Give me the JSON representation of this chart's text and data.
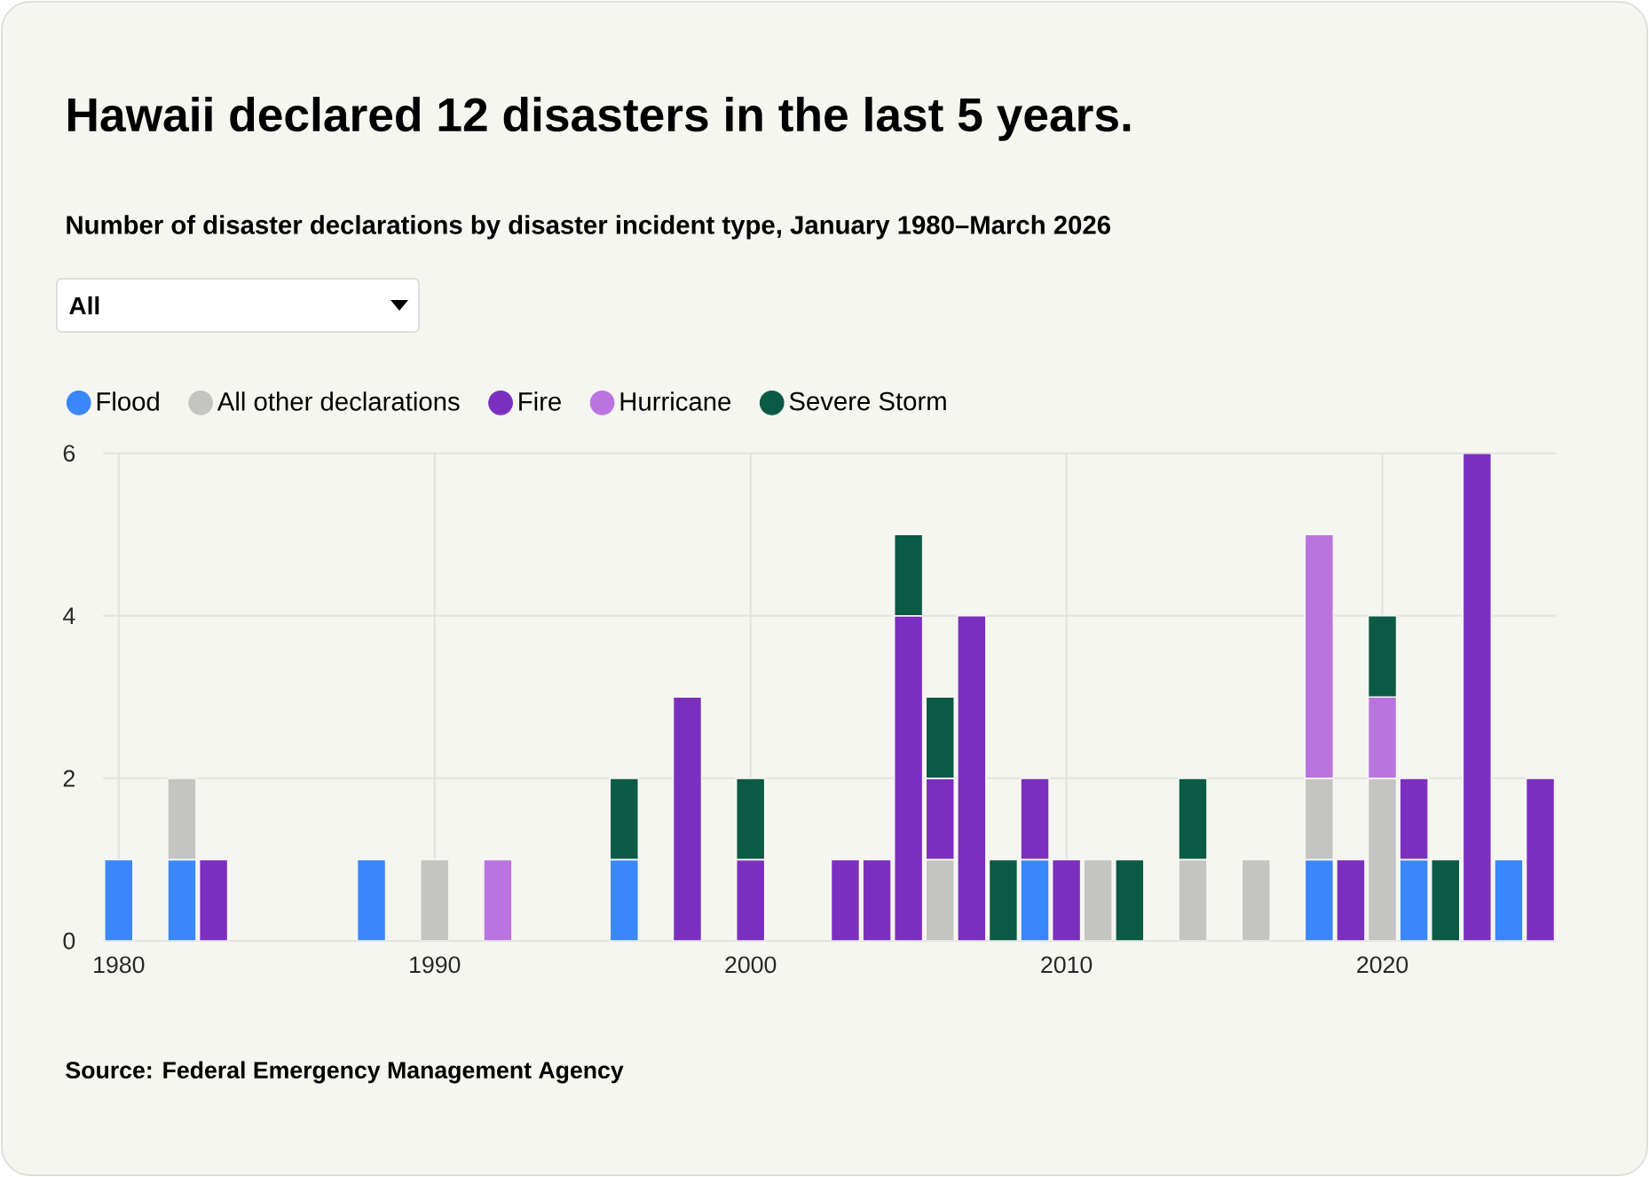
{
  "chart_data": {
    "type": "bar",
    "stacked": true,
    "title": "Hawaii declared 12 disasters in the last 5 years.",
    "subtitle": "Number of disaster declarations by disaster incident type, January 1980–March 2026",
    "annotations": [
      "All",
      "Source: Federal Emergency Management Agency"
    ],
    "x": [
      1980,
      1981,
      1982,
      1983,
      1984,
      1985,
      1986,
      1987,
      1988,
      1989,
      1990,
      1991,
      1992,
      1993,
      1994,
      1995,
      1996,
      1997,
      1998,
      1999,
      2000,
      2001,
      2002,
      2003,
      2004,
      2005,
      2006,
      2007,
      2008,
      2009,
      2010,
      2011,
      2012,
      2013,
      2014,
      2015,
      2016,
      2017,
      2018,
      2019,
      2020,
      2021,
      2022,
      2023,
      2024,
      2025
    ],
    "series": [
      {
        "name": "Flood",
        "color": "#3a86fb",
        "values": [
          1,
          null,
          1,
          null,
          null,
          null,
          null,
          null,
          1,
          null,
          null,
          null,
          null,
          null,
          null,
          null,
          1,
          null,
          null,
          null,
          null,
          null,
          null,
          null,
          null,
          null,
          null,
          null,
          null,
          1,
          null,
          null,
          null,
          null,
          null,
          null,
          null,
          null,
          1,
          null,
          null,
          1,
          null,
          null,
          1,
          null
        ]
      },
      {
        "name": "All other declarations",
        "color": "#c4c4c2",
        "values": [
          null,
          null,
          1,
          null,
          null,
          null,
          null,
          null,
          null,
          null,
          1,
          null,
          null,
          null,
          null,
          null,
          null,
          null,
          null,
          null,
          null,
          null,
          null,
          null,
          null,
          null,
          1,
          null,
          null,
          null,
          null,
          1,
          null,
          null,
          1,
          null,
          1,
          null,
          1,
          null,
          2,
          null,
          null,
          null,
          null,
          null
        ]
      },
      {
        "name": "Fire",
        "color": "#7b2fbf",
        "values": [
          null,
          null,
          null,
          1,
          null,
          null,
          null,
          null,
          null,
          null,
          null,
          null,
          null,
          null,
          null,
          null,
          null,
          null,
          3,
          null,
          1,
          null,
          null,
          1,
          1,
          4,
          1,
          4,
          null,
          1,
          1,
          null,
          null,
          null,
          null,
          null,
          null,
          null,
          null,
          1,
          null,
          1,
          null,
          6,
          null,
          2
        ]
      },
      {
        "name": "Hurricane",
        "color": "#b974e0",
        "values": [
          null,
          null,
          null,
          null,
          null,
          null,
          null,
          null,
          null,
          null,
          null,
          null,
          1,
          null,
          null,
          null,
          null,
          null,
          null,
          null,
          null,
          null,
          null,
          null,
          null,
          null,
          null,
          null,
          null,
          null,
          null,
          null,
          null,
          null,
          null,
          null,
          null,
          null,
          3,
          null,
          1,
          null,
          null,
          null,
          null,
          null
        ]
      },
      {
        "name": "Severe Storm",
        "color": "#0b5a45",
        "values": [
          null,
          null,
          null,
          null,
          null,
          null,
          null,
          null,
          null,
          null,
          null,
          null,
          null,
          null,
          null,
          null,
          1,
          null,
          null,
          null,
          1,
          null,
          null,
          null,
          null,
          1,
          1,
          null,
          1,
          null,
          null,
          null,
          1,
          null,
          1,
          null,
          null,
          null,
          null,
          null,
          1,
          null,
          1,
          null,
          null,
          null
        ]
      }
    ],
    "xlim": [
      1979.5,
      2025.5
    ],
    "xticks": [
      1980,
      1990,
      2000,
      2010,
      2020
    ],
    "ylim": [
      0,
      6
    ],
    "yticks": [
      0,
      2,
      4,
      6
    ],
    "grid": true,
    "legend": "top left"
  }
}
